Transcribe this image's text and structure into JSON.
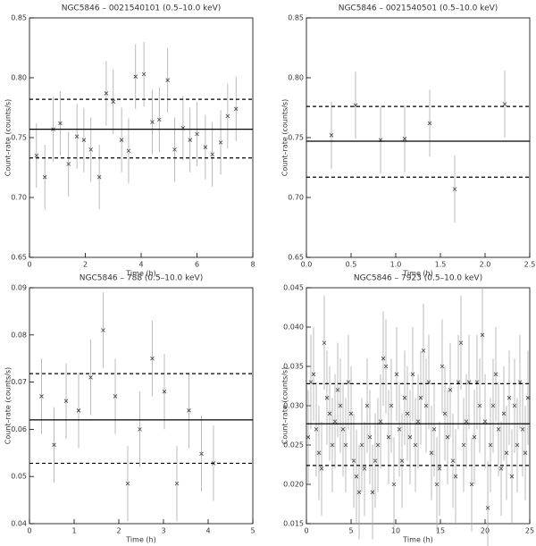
{
  "chart_data": [
    {
      "type": "scatter",
      "title": "NGC5846 – 0021540101 (0.5–10.0 keV)",
      "x_label": "Time (h)",
      "y_label": "Count–rate (counts/s)",
      "x": [
        0.25,
        0.55,
        0.85,
        1.1,
        1.4,
        1.7,
        1.95,
        2.2,
        2.5,
        2.75,
        3.0,
        3.3,
        3.55,
        3.8,
        4.1,
        4.4,
        4.65,
        4.95,
        5.2,
        5.5,
        5.75,
        6.0,
        6.3,
        6.55,
        6.85,
        7.1,
        7.4
      ],
      "values": [
        0.735,
        0.717,
        0.757,
        0.762,
        0.728,
        0.751,
        0.748,
        0.74,
        0.717,
        0.787,
        0.78,
        0.748,
        0.739,
        0.801,
        0.803,
        0.763,
        0.765,
        0.798,
        0.74,
        0.758,
        0.748,
        0.753,
        0.742,
        0.736,
        0.746,
        0.768,
        0.774
      ],
      "error": 0.027,
      "mean": 0.757,
      "upper": 0.782,
      "lower": 0.733,
      "xlim": [
        0,
        8
      ],
      "xticks": [
        0,
        2,
        4,
        6,
        8
      ],
      "ylim": [
        0.65,
        0.85
      ],
      "yticks": [
        0.65,
        {
          "value": 0.7,
          "label": "0.70"
        },
        0.75,
        {
          "value": 0.8,
          "label": "0.80"
        },
        0.85
      ]
    },
    {
      "type": "scatter",
      "title": "NGC5846 – 0021540501 (0.5–10.0 keV)",
      "x_label": "Time (h)",
      "y_label": "Count–rate (counts/s)",
      "x": [
        0.28,
        0.55,
        0.83,
        1.1,
        1.38,
        1.66,
        2.22
      ],
      "values": [
        0.752,
        0.777,
        0.748,
        0.749,
        0.762,
        0.707,
        0.778
      ],
      "error": 0.028,
      "mean": 0.747,
      "upper": 0.776,
      "lower": 0.717,
      "xlim": [
        0,
        2.5
      ],
      "xticks": [
        {
          "value": 0,
          "label": "0.0"
        },
        0.5,
        {
          "value": 1,
          "label": "1.0"
        },
        1.5,
        {
          "value": 2,
          "label": "2.0"
        },
        2.5
      ],
      "ylim": [
        0.65,
        0.85
      ],
      "yticks": [
        0.65,
        {
          "value": 0.7,
          "label": "0.70"
        },
        0.75,
        {
          "value": 0.8,
          "label": "0.80"
        },
        0.85
      ]
    },
    {
      "type": "scatter",
      "title": "NGC5846 – 788 (0.5–10.0 keV)",
      "x_label": "Time (h)",
      "y_label": "Count–rate (counts/s)",
      "x": [
        0.27,
        0.55,
        0.82,
        1.1,
        1.37,
        1.65,
        1.92,
        2.2,
        2.47,
        2.75,
        3.02,
        3.3,
        3.57,
        3.85,
        4.12
      ],
      "values": [
        0.067,
        0.0567,
        0.066,
        0.064,
        0.071,
        0.081,
        0.067,
        0.0485,
        0.06,
        0.075,
        0.068,
        0.0485,
        0.064,
        0.0548,
        0.0528
      ],
      "error": 0.008,
      "mean": 0.062,
      "upper": 0.0718,
      "lower": 0.0528,
      "xlim": [
        0,
        5
      ],
      "xticks": [
        0,
        1,
        2,
        3,
        4,
        5
      ],
      "ylim": [
        0.04,
        0.09
      ],
      "yticks": [
        0.04,
        0.05,
        0.06,
        0.07,
        0.08,
        0.09
      ]
    },
    {
      "type": "scatter",
      "title": "NGC5846 – 7923 (0.5–10.0 keV)",
      "x_label": "Time (h)",
      "y_label": "Count–rate (counts/s)",
      "x": [
        0.2,
        0.5,
        0.8,
        1.1,
        1.4,
        1.7,
        2.0,
        2.3,
        2.6,
        2.9,
        3.2,
        3.5,
        3.8,
        4.1,
        4.4,
        4.7,
        5.0,
        5.3,
        5.6,
        5.9,
        6.2,
        6.5,
        6.8,
        7.1,
        7.4,
        7.7,
        8.0,
        8.3,
        8.6,
        8.9,
        9.2,
        9.5,
        9.8,
        10.1,
        10.4,
        10.7,
        11.0,
        11.3,
        11.6,
        11.9,
        12.2,
        12.5,
        12.8,
        13.1,
        13.4,
        13.7,
        14.0,
        14.3,
        14.6,
        14.9,
        15.2,
        15.5,
        15.8,
        16.1,
        16.4,
        16.7,
        17.0,
        17.3,
        17.6,
        17.9,
        18.2,
        18.5,
        18.8,
        19.1,
        19.4,
        19.7,
        20.0,
        20.3,
        20.6,
        20.9,
        21.2,
        21.5,
        21.8,
        22.1,
        22.4,
        22.7,
        23.0,
        23.3,
        23.6,
        23.9,
        24.2,
        24.5,
        24.8
      ],
      "values": [
        0.026,
        0.033,
        0.034,
        0.027,
        0.024,
        0.022,
        0.038,
        0.031,
        0.029,
        0.025,
        0.028,
        0.032,
        0.03,
        0.027,
        0.025,
        0.033,
        0.029,
        0.023,
        0.021,
        0.019,
        0.025,
        0.022,
        0.03,
        0.026,
        0.019,
        0.023,
        0.025,
        0.028,
        0.036,
        0.035,
        0.026,
        0.03,
        0.02,
        0.034,
        0.027,
        0.023,
        0.031,
        0.029,
        0.026,
        0.034,
        0.025,
        0.028,
        0.031,
        0.037,
        0.03,
        0.033,
        0.024,
        0.027,
        0.02,
        0.022,
        0.035,
        0.029,
        0.026,
        0.032,
        0.023,
        0.021,
        0.033,
        0.038,
        0.025,
        0.028,
        0.033,
        0.02,
        0.026,
        0.033,
        0.03,
        0.039,
        0.028,
        0.017,
        0.025,
        0.03,
        0.034,
        0.027,
        0.022,
        0.029,
        0.024,
        0.031,
        0.021,
        0.03,
        0.025,
        0.033,
        0.027,
        0.024,
        0.031
      ],
      "error": 0.006,
      "mean": 0.0277,
      "upper": 0.0328,
      "lower": 0.0224,
      "xlim": [
        0,
        25
      ],
      "xticks": [
        0,
        5,
        10,
        15,
        20,
        25
      ],
      "ylim": [
        0.015,
        0.045
      ],
      "yticks": [
        0.015,
        {
          "value": 0.02,
          "label": "0.020"
        },
        0.025,
        {
          "value": 0.03,
          "label": "0.030"
        },
        0.035,
        {
          "value": 0.04,
          "label": "0.040"
        },
        0.045
      ]
    }
  ]
}
